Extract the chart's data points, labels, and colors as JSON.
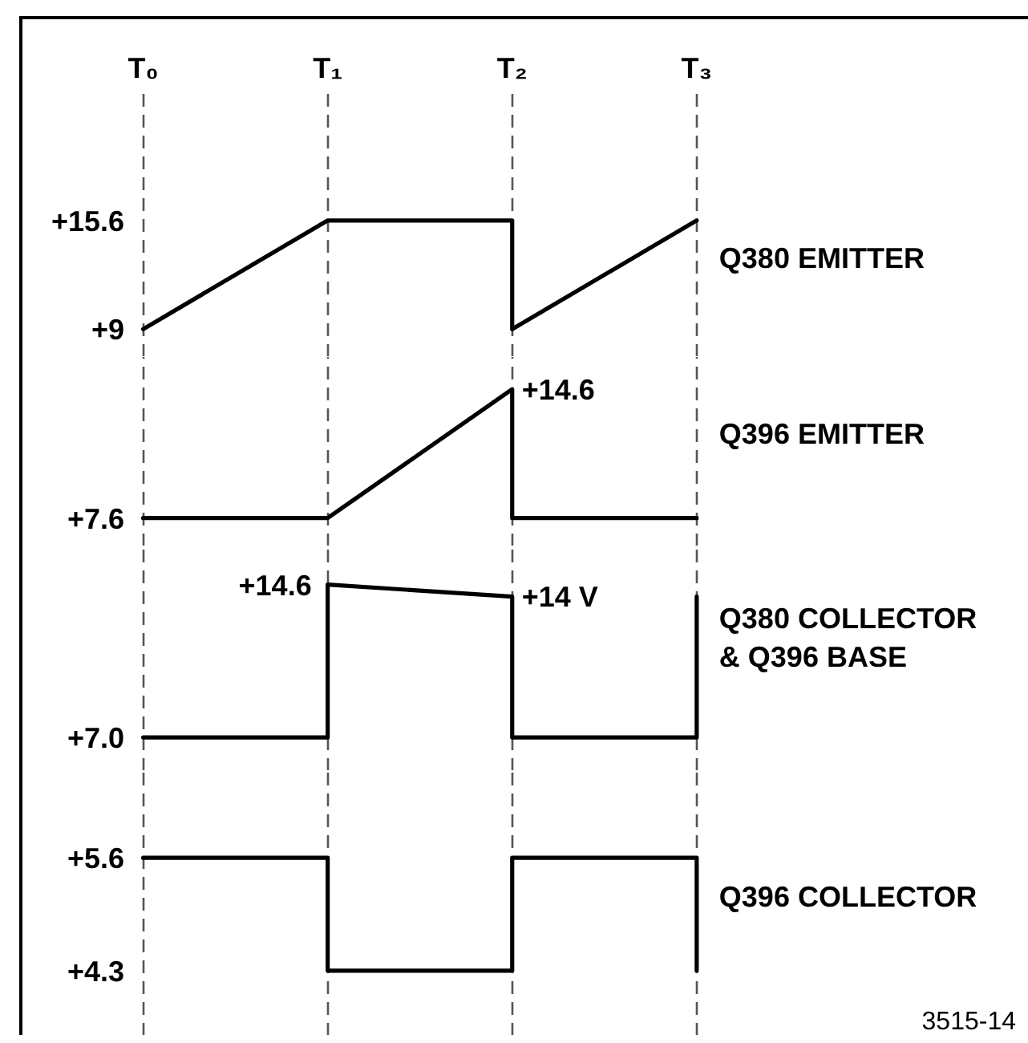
{
  "chart_data": [
    {
      "type": "line",
      "categories": [
        "T₀",
        "T₁",
        "T₂",
        "T₃"
      ],
      "series": [
        {
          "name": "Q380 EMITTER",
          "color": "#000000",
          "x": [
            "T₀",
            "T₁",
            "T₂",
            "T₂",
            "T₃"
          ],
          "values": [
            9,
            15.6,
            15.6,
            9,
            15.6
          ]
        }
      ],
      "ylim": [
        7.3,
        23.3
      ],
      "yticks": [
        {
          "value": 15.6,
          "label": "+15.6"
        },
        {
          "value": 9,
          "label": "+9"
        }
      ],
      "grid": "x"
    },
    {
      "type": "line",
      "categories": [
        "T₀",
        "T₁",
        "T₂",
        "T₃"
      ],
      "series": [
        {
          "name": "Q396 EMITTER",
          "color": "#000000",
          "x": [
            "T₀",
            "T₁",
            "T₂",
            "T₂",
            "T₃"
          ],
          "values": [
            7.6,
            7.6,
            14.6,
            7.6,
            7.6
          ],
          "value_labels": [
            "+7.6",
            null,
            "+14.6",
            null,
            null
          ]
        }
      ],
      "grid": "x",
      "tick_labels": false
    },
    {
      "type": "line",
      "categories": [
        "T₀",
        "T₁",
        "T₂",
        "T₃"
      ],
      "series": [
        {
          "name": "Q380 COLLECTOR & Q396 BASE",
          "color": "#000000",
          "x": [
            "T₀",
            "T₁",
            "T₁",
            "T₂",
            "T₂",
            "T₃",
            "T₃"
          ],
          "values": [
            7.0,
            7.0,
            14.6,
            14,
            7.0,
            7.0,
            14
          ],
          "value_labels": [
            "+7.0",
            null,
            "+14.6",
            "+14 V",
            null,
            null,
            null
          ]
        }
      ],
      "grid": "x",
      "tick_labels": false
    },
    {
      "type": "line",
      "categories": [
        "T₀",
        "T₁",
        "T₂",
        "T₃"
      ],
      "series": [
        {
          "name": "Q396 COLLECTOR",
          "color": "#000000",
          "x": [
            "T₀",
            "T₁",
            "T₁",
            "T₂",
            "T₂",
            "T₃",
            "T₃"
          ],
          "values": [
            5.6,
            5.6,
            4.3,
            4.3,
            5.6,
            5.6,
            4.3
          ]
        }
      ],
      "ylim": [
        3.55,
        6.6
      ],
      "yticks": [
        {
          "value": 5.6,
          "label": "+5.6"
        },
        {
          "value": 4.3,
          "label": "+4.3"
        }
      ],
      "grid": "x",
      "tick_labels": "y",
      "annotations": [
        "3515-14"
      ]
    }
  ]
}
